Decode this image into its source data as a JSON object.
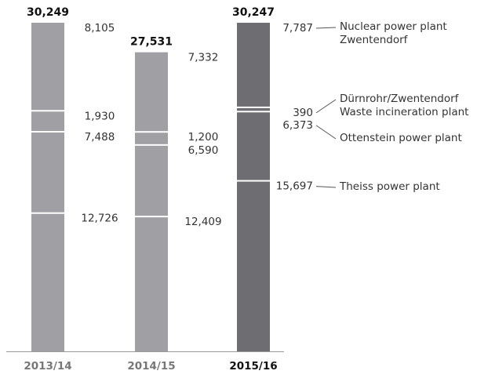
{
  "chart_data": {
    "type": "stacked-bar",
    "categories": [
      "2013/14",
      "2014/15",
      "2015/16"
    ],
    "colors": [
      "#a0a0a4",
      "#a0a0a4",
      "#6d6d72"
    ],
    "totals": [
      30249,
      27531,
      30247
    ],
    "total_labels": [
      "30,249",
      "27,531",
      "30,247"
    ],
    "series": [
      {
        "name": "Theiss power plant",
        "values": [
          12726,
          12409,
          15697
        ],
        "value_labels": [
          "12,726",
          "12,409",
          "15,697"
        ]
      },
      {
        "name": "Ottenstein power plant",
        "values": [
          7488,
          6590,
          6373
        ],
        "value_labels": [
          "7,488",
          "6,590",
          "6,373"
        ]
      },
      {
        "name": "Dürnrohr/Zwentendorf Waste incineration plant",
        "values": [
          1930,
          1200,
          390
        ],
        "value_labels": [
          "1,930",
          "1,200",
          "390"
        ]
      },
      {
        "name": "Nuclear power plant Zwentendorf",
        "values": [
          8105,
          7332,
          7787
        ],
        "value_labels": [
          "8,105",
          "7,332",
          "7,787"
        ]
      }
    ]
  }
}
